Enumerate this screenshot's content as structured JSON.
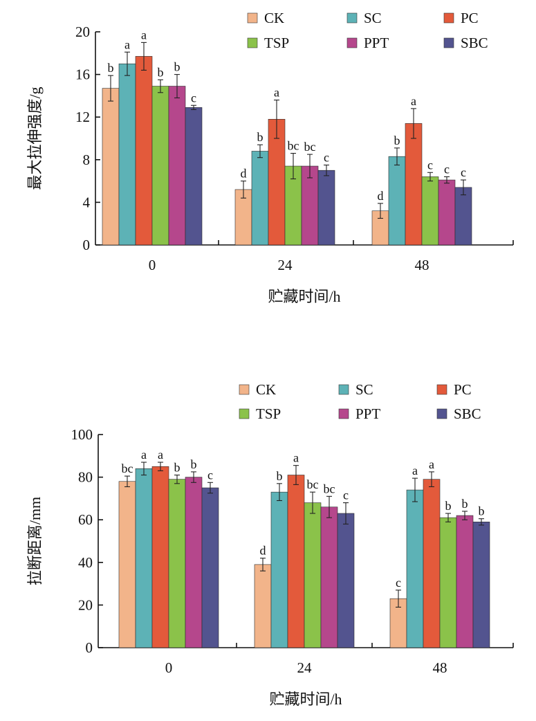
{
  "colors": {
    "CK": "#F2B48A",
    "SC": "#5DB2B6",
    "PC": "#E35A3B",
    "TSP": "#8BC24A",
    "PPT": "#B5478C",
    "SBC": "#53548F"
  },
  "chart_data": [
    {
      "type": "bar",
      "title": "",
      "xlabel": "贮藏时间/h",
      "ylabel": "最大拉伸强度/g",
      "ylim": [
        0,
        20
      ],
      "yticks": [
        "0",
        "4",
        "8",
        "12",
        "16",
        "20"
      ],
      "categories": [
        "0",
        "24",
        "48"
      ],
      "legend": {
        "position": "top-right",
        "entries": [
          "CK",
          "SC",
          "PC",
          "TSP",
          "PPT",
          "SBC"
        ]
      },
      "series": [
        {
          "name": "CK",
          "values": [
            14.7,
            5.2,
            3.2
          ],
          "errors": [
            1.2,
            0.8,
            0.7
          ],
          "labels": [
            "b",
            "d",
            "d"
          ]
        },
        {
          "name": "SC",
          "values": [
            17.0,
            8.8,
            8.3
          ],
          "errors": [
            1.1,
            0.6,
            0.8
          ],
          "labels": [
            "a",
            "b",
            "b"
          ]
        },
        {
          "name": "PC",
          "values": [
            17.7,
            11.8,
            11.4
          ],
          "errors": [
            1.3,
            1.8,
            1.4
          ],
          "labels": [
            "a",
            "a",
            "a"
          ]
        },
        {
          "name": "TSP",
          "values": [
            14.9,
            7.4,
            6.4
          ],
          "errors": [
            0.6,
            1.2,
            0.4
          ],
          "labels": [
            "b",
            "bc",
            "c"
          ]
        },
        {
          "name": "PPT",
          "values": [
            14.9,
            7.4,
            6.1
          ],
          "errors": [
            1.1,
            1.1,
            0.3
          ],
          "labels": [
            "b",
            "bc",
            "c"
          ]
        },
        {
          "name": "SBC",
          "values": [
            12.9,
            7.0,
            5.4
          ],
          "errors": [
            0.2,
            0.5,
            0.7
          ],
          "labels": [
            "c",
            "c",
            "c"
          ]
        }
      ]
    },
    {
      "type": "bar",
      "title": "",
      "xlabel": "贮藏时间/h",
      "ylabel": "拉断距离/mm",
      "ylim": [
        0,
        100
      ],
      "yticks": [
        "0",
        "20",
        "40",
        "60",
        "80",
        "100"
      ],
      "categories": [
        "0",
        "24",
        "48"
      ],
      "legend": {
        "position": "top-right",
        "entries": [
          "CK",
          "SC",
          "PC",
          "TSP",
          "PPT",
          "SBC"
        ]
      },
      "series": [
        {
          "name": "CK",
          "values": [
            78,
            39,
            23
          ],
          "errors": [
            2.5,
            3.0,
            4.0
          ],
          "labels": [
            "bc",
            "d",
            "c"
          ]
        },
        {
          "name": "SC",
          "values": [
            84,
            73,
            74
          ],
          "errors": [
            3.0,
            4.0,
            5.5
          ],
          "labels": [
            "a",
            "b",
            "a"
          ]
        },
        {
          "name": "PC",
          "values": [
            85,
            81,
            79
          ],
          "errors": [
            2.0,
            4.5,
            3.5
          ],
          "labels": [
            "a",
            "a",
            "a"
          ]
        },
        {
          "name": "TSP",
          "values": [
            79,
            68,
            61
          ],
          "errors": [
            2.0,
            5.0,
            2.0
          ],
          "labels": [
            "b",
            "bc",
            "b"
          ]
        },
        {
          "name": "PPT",
          "values": [
            80,
            66,
            62
          ],
          "errors": [
            2.5,
            5.0,
            2.0
          ],
          "labels": [
            "b",
            "bc",
            "b"
          ]
        },
        {
          "name": "SBC",
          "values": [
            75,
            63,
            59
          ],
          "errors": [
            2.5,
            5.0,
            1.5
          ],
          "labels": [
            "c",
            "c",
            "b"
          ]
        }
      ]
    }
  ]
}
